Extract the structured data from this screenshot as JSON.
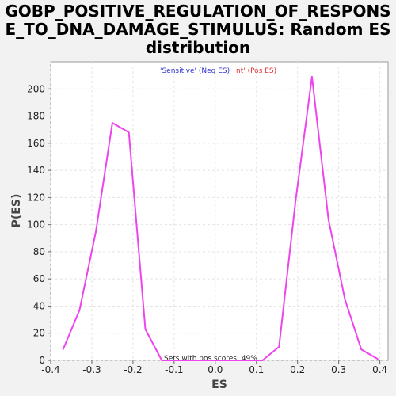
{
  "chart_data": {
    "type": "line",
    "title_lines": [
      "GOBP_POSITIVE_REGULATION_OF_RESPONS",
      "E_TO_DNA_DAMAGE_STIMULUS: Random ES",
      "distribution"
    ],
    "xlabel": "ES",
    "ylabel": "P(ES)",
    "xlim": [
      -0.4,
      0.42
    ],
    "ylim": [
      0,
      220
    ],
    "xticks": [
      -0.4,
      -0.3,
      -0.2,
      -0.1,
      0.0,
      0.1,
      0.2,
      0.3,
      0.4
    ],
    "xtick_labels": [
      "-0.4",
      "-0.3",
      "-0.2",
      "-0.1",
      "0.0",
      "0.1",
      "0.2",
      "0.3",
      "0.4"
    ],
    "yticks": [
      0,
      20,
      40,
      60,
      80,
      100,
      120,
      140,
      160,
      180,
      200
    ],
    "ytick_labels": [
      "0",
      "20",
      "40",
      "60",
      "80",
      "100",
      "120",
      "140",
      "160",
      "180",
      "200"
    ],
    "grid": true,
    "series": [
      {
        "color": "#ee44ee",
        "x": [
          -0.37,
          -0.33,
          -0.29,
          -0.25,
          -0.21,
          -0.17,
          -0.13,
          -0.09,
          -0.05,
          -0.01,
          0.03,
          0.07,
          0.115,
          0.155,
          0.195,
          0.235,
          0.275,
          0.315,
          0.355,
          0.395
        ],
        "y": [
          8,
          37,
          95,
          175,
          168,
          23,
          0,
          0,
          0,
          0,
          0,
          0,
          0,
          10,
          117,
          209,
          104,
          45,
          8,
          1
        ]
      }
    ],
    "legend": {
      "placement": "top-center",
      "sensitive_text": "'Sensitive' (Neg ES)",
      "sensitive_color": "#3333cc",
      "resistant_text": "nt' (Pos ES)",
      "resistant_color": "#dd3333"
    },
    "annotation": "Sets with pos scores: 49%"
  }
}
